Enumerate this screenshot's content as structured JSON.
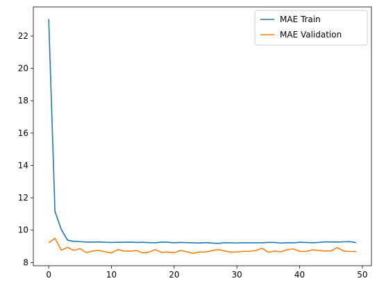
{
  "chart_data": {
    "type": "line",
    "title": "",
    "xlabel": "",
    "ylabel": "",
    "xlim": [
      -2.45,
      51.45
    ],
    "ylim": [
      7.8,
      23.8
    ],
    "x_ticks": [
      0,
      10,
      20,
      30,
      40,
      50
    ],
    "y_ticks": [
      8,
      10,
      12,
      14,
      16,
      18,
      20,
      22
    ],
    "grid": false,
    "legend_position": "top-right",
    "x": [
      0,
      1,
      2,
      3,
      4,
      5,
      6,
      7,
      8,
      9,
      10,
      11,
      12,
      13,
      14,
      15,
      16,
      17,
      18,
      19,
      20,
      21,
      22,
      23,
      24,
      25,
      26,
      27,
      28,
      29,
      30,
      31,
      32,
      33,
      34,
      35,
      36,
      37,
      38,
      39,
      40,
      41,
      42,
      43,
      44,
      45,
      46,
      47,
      48,
      49
    ],
    "series": [
      {
        "name": "MAE Train",
        "color": "#1f77b4",
        "values": [
          23.05,
          11.15,
          10.05,
          9.38,
          9.31,
          9.29,
          9.26,
          9.26,
          9.27,
          9.25,
          9.24,
          9.25,
          9.25,
          9.26,
          9.24,
          9.25,
          9.23,
          9.22,
          9.26,
          9.25,
          9.22,
          9.24,
          9.23,
          9.22,
          9.2,
          9.23,
          9.2,
          9.18,
          9.22,
          9.22,
          9.21,
          9.22,
          9.22,
          9.22,
          9.22,
          9.24,
          9.24,
          9.2,
          9.22,
          9.22,
          9.25,
          9.24,
          9.22,
          9.24,
          9.27,
          9.27,
          9.26,
          9.28,
          9.29,
          9.23
        ]
      },
      {
        "name": "MAE Validation",
        "color": "#ff7f0e",
        "values": [
          9.22,
          9.5,
          8.76,
          8.93,
          8.75,
          8.86,
          8.61,
          8.71,
          8.75,
          8.66,
          8.59,
          8.8,
          8.71,
          8.7,
          8.74,
          8.59,
          8.64,
          8.8,
          8.62,
          8.65,
          8.6,
          8.75,
          8.66,
          8.56,
          8.65,
          8.65,
          8.73,
          8.8,
          8.72,
          8.64,
          8.65,
          8.69,
          8.69,
          8.74,
          8.88,
          8.63,
          8.71,
          8.66,
          8.79,
          8.84,
          8.69,
          8.68,
          8.78,
          8.75,
          8.71,
          8.72,
          8.92,
          8.71,
          8.68,
          8.67
        ]
      }
    ]
  }
}
